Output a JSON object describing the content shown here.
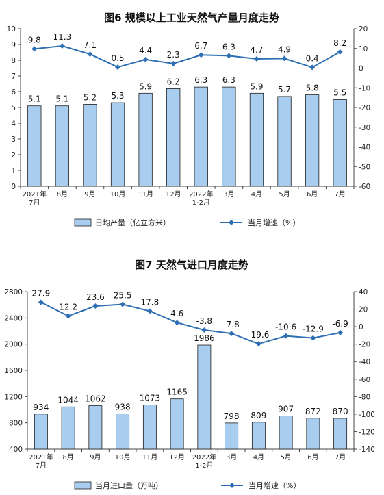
{
  "chart_data": [
    {
      "type": "bar+line",
      "title": "图6  规模以上工业天然气产量月度走势",
      "categories": [
        [
          "2021年",
          "7月"
        ],
        [
          "8月"
        ],
        [
          "9月"
        ],
        [
          "10月"
        ],
        [
          "11月"
        ],
        [
          "12月"
        ],
        [
          "2022年",
          "1-2月"
        ],
        [
          "3月"
        ],
        [
          "4月"
        ],
        [
          "5月"
        ],
        [
          "6月"
        ],
        [
          "7月"
        ]
      ],
      "series": [
        {
          "name": "日均产量（亿立方米）",
          "type": "bar",
          "axis": "left",
          "values": [
            5.1,
            5.1,
            5.2,
            5.3,
            5.9,
            6.2,
            6.3,
            6.3,
            5.9,
            5.7,
            5.8,
            5.5
          ],
          "labels": [
            "5.1",
            "5.1",
            "5.2",
            "5.3",
            "5.9",
            "6.2",
            "6.3",
            "6.3",
            "5.9",
            "5.7",
            "5.8",
            "5.5"
          ]
        },
        {
          "name": "当月增速（%）",
          "type": "line",
          "axis": "right",
          "values": [
            9.8,
            11.3,
            7.1,
            0.5,
            4.4,
            2.3,
            6.7,
            6.3,
            4.7,
            4.9,
            0.4,
            8.2
          ],
          "labels": [
            "9.8",
            "11.3",
            "7.1",
            "0.5",
            "4.4",
            "2.3",
            "6.7",
            "6.3",
            "4.7",
            "4.9",
            "0.4",
            "8.2"
          ]
        }
      ],
      "left_axis": {
        "min": 0,
        "max": 10,
        "ticks": [
          "0",
          "1",
          "2",
          "3",
          "4",
          "5",
          "6",
          "7",
          "8",
          "9",
          "10"
        ]
      },
      "right_axis": {
        "min": -60,
        "max": 20,
        "ticks": [
          "-60",
          "-50",
          "-40",
          "-30",
          "-20",
          "-10",
          "0",
          "10",
          "20"
        ]
      },
      "legend_placement": "bottom",
      "grid": false,
      "colors": {
        "bar_fill": "#a9cdee",
        "bar_stroke": "#1f1f1f",
        "line": "#2e6fb3"
      }
    },
    {
      "type": "bar+line",
      "title": "图7  天然气进口月度走势",
      "categories": [
        [
          "2021年",
          "7月"
        ],
        [
          "8月"
        ],
        [
          "9月"
        ],
        [
          "10月"
        ],
        [
          "11月"
        ],
        [
          "12月"
        ],
        [
          "2022年",
          "1-2月"
        ],
        [
          "3月"
        ],
        [
          "4月"
        ],
        [
          "5月"
        ],
        [
          "6月"
        ],
        [
          "7月"
        ]
      ],
      "series": [
        {
          "name": "当月进口量（万吨）",
          "type": "bar",
          "axis": "left",
          "values": [
            934,
            1044,
            1062,
            938,
            1073,
            1165,
            1986,
            798,
            809,
            907,
            872,
            870
          ],
          "labels": [
            "934",
            "1044",
            "1062",
            "938",
            "1073",
            "1165",
            "1986",
            "798",
            "809",
            "907",
            "872",
            "870"
          ]
        },
        {
          "name": "当月增速（%）",
          "type": "line",
          "axis": "right",
          "values": [
            27.9,
            12.2,
            23.6,
            25.5,
            17.8,
            4.6,
            -3.8,
            -7.8,
            -19.6,
            -10.6,
            -12.9,
            -6.9
          ],
          "labels": [
            "27.9",
            "12.2",
            "23.6",
            "25.5",
            "17.8",
            "4.6",
            "-3.8",
            "-7.8",
            "-19.6",
            "-10.6",
            "-12.9",
            "-6.9"
          ]
        }
      ],
      "left_axis": {
        "min": 400,
        "max": 2800,
        "ticks": [
          "400",
          "800",
          "1200",
          "1600",
          "2000",
          "2400",
          "2800"
        ]
      },
      "right_axis": {
        "min": -140,
        "max": 40,
        "ticks": [
          "-140",
          "-120",
          "-100",
          "-80",
          "-60",
          "-40",
          "-20",
          "0",
          "20",
          "40"
        ]
      },
      "legend_placement": "bottom",
      "grid": false,
      "colors": {
        "bar_fill": "#a9cdee",
        "bar_stroke": "#1f1f1f",
        "line": "#2e6fb3"
      }
    }
  ]
}
